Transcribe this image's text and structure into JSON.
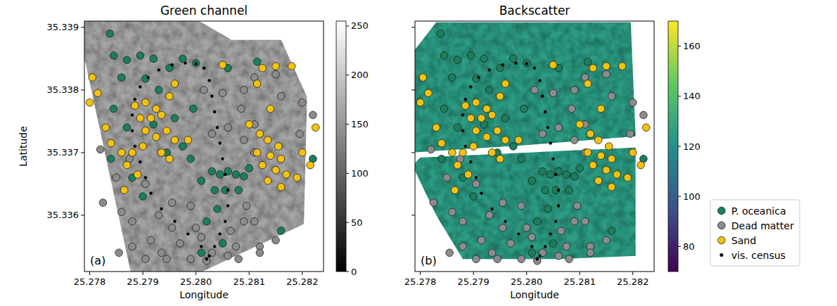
{
  "chart_data": [
    {
      "type": "scatter",
      "title": "Green channel",
      "x_label": "Longitude",
      "y_label": "Latitude",
      "annotation": "(a)",
      "xlim": [
        25.2779,
        25.2824
      ],
      "ylim": [
        35.3351,
        35.3391
      ],
      "xticks": [
        25.278,
        25.279,
        {
          "value": 25.28,
          "label": "25.280"
        },
        25.281,
        25.282
      ],
      "yticks": [
        35.336,
        35.337,
        35.338,
        35.339
      ],
      "colorbar": {
        "range": [
          0,
          255
        ],
        "ticks": [
          0,
          50,
          100,
          150,
          200,
          250
        ],
        "colors": [
          "#000000",
          "#ffffff"
        ]
      },
      "coverage": [
        {
          "x": [
            25.27788,
            25.28002,
            25.28067,
            25.2816,
            25.28209,
            25.28203,
            25.28012,
            25.27877,
            25.27788
          ],
          "y": [
            35.33912,
            35.33912,
            35.3388,
            35.3388,
            35.33789,
            35.33586,
            35.3351,
            35.3351,
            35.33859
          ],
          "value": 165
        }
      ],
      "series": [
        {
          "name": "P. oceanica",
          "color": "#1a7f5a",
          "marker": "circle",
          "x": [
            25.27838,
            25.27845,
            25.2787,
            25.27895,
            25.2792,
            25.2786,
            25.27905,
            25.2795,
            25.27975,
            25.28,
            25.2793,
            25.27845,
            25.2787,
            25.2792,
            25.2796,
            25.27995,
            25.2784,
            25.2788,
            25.279,
            25.27945,
            25.27975,
            25.2799,
            25.2801,
            25.2803,
            25.28045,
            25.2806,
            25.28075,
            25.2809,
            25.281,
            25.28035,
            25.28055,
            25.2808,
            25.2802,
            25.2804,
            25.2816,
            25.2805,
            25.2801,
            25.2822,
            25.28115,
            25.2806
          ],
          "values": [
            35.3389,
            35.33855,
            35.33848,
            35.33855,
            35.3385,
            35.3382,
            35.33818,
            35.33835,
            35.3385,
            35.33843,
            35.338,
            35.3377,
            35.3374,
            35.33745,
            35.33755,
            35.3377,
            35.3369,
            35.3366,
            35.3363,
            35.337,
            35.3371,
            35.3369,
            35.33655,
            35.3367,
            35.33665,
            35.3367,
            35.33665,
            35.33662,
            35.33675,
            35.3364,
            35.3364,
            35.3364,
            35.3359,
            35.3361,
            35.33575,
            35.33555,
            35.3354,
            35.3369,
            35.33845,
            35.33835
          ]
        },
        {
          "name": "Dead matter",
          "color": "#8c8c8c",
          "marker": "circle",
          "x": [
            25.28015,
            25.2805,
            25.2809,
            25.2811,
            25.2815,
            25.28085,
            25.2811,
            25.2809,
            25.2816,
            25.282,
            25.2822,
            25.28195,
            25.2811,
            25.2803,
            25.2806,
            25.27875,
            25.2782,
            25.2785,
            25.27825,
            25.2786,
            25.27905,
            25.2788,
            25.2793,
            25.27955,
            25.2799,
            25.28,
            25.27955,
            25.27915,
            25.2788,
            25.27935,
            25.2797,
            25.2801,
            25.2803,
            25.28065,
            25.2809,
            25.28095,
            25.2811,
            25.28075,
            25.2806,
            25.2812,
            25.2815,
            25.2799,
            25.27945,
            25.27905,
            25.2802,
            25.2808,
            25.2812,
            25.27855
          ],
          "values": [
            35.338,
            35.33795,
            35.338,
            35.3382,
            35.33825,
            35.3377,
            35.33745,
            35.3372,
            35.3379,
            35.3378,
            35.3376,
            35.3373,
            35.337,
            35.3373,
            35.3374,
            35.3369,
            35.33705,
            35.3366,
            35.3362,
            35.33605,
            35.3365,
            35.3359,
            35.336,
            35.3362,
            35.33615,
            35.3358,
            35.3358,
            35.3356,
            35.3355,
            35.3354,
            35.33555,
            35.33565,
            35.3354,
            35.33575,
            35.3359,
            35.33615,
            35.3359,
            35.3355,
            35.33535,
            35.3355,
            35.3356,
            35.3353,
            35.3353,
            35.3353,
            35.33527,
            35.3353,
            35.3354,
            35.3354
          ]
        },
        {
          "name": "Sand",
          "color": "#f4c20d",
          "marker": "circle",
          "x": [
            25.27805,
            25.27815,
            25.278,
            25.2784,
            25.2786,
            25.2783,
            25.27885,
            25.27905,
            25.27925,
            25.27895,
            25.27915,
            25.27935,
            25.27905,
            25.27925,
            25.27945,
            25.2796,
            25.279,
            25.2788,
            25.27935,
            25.2795,
            25.2787,
            25.2789,
            25.27865,
            25.27985,
            25.2796,
            25.28125,
            25.2815,
            25.2818,
            25.28115,
            25.2814,
            25.281,
            25.2812,
            25.28135,
            25.28155,
            25.28115,
            25.2814,
            25.2816,
            25.28125,
            25.2815,
            25.2817,
            25.28135,
            25.2816,
            25.282,
            25.28215,
            25.28225,
            25.2819,
            25.2805,
            25.2795
          ],
          "values": [
            35.3382,
            35.33795,
            35.3378,
            35.33715,
            35.337,
            35.3374,
            35.33775,
            35.3378,
            35.3377,
            35.33755,
            35.33755,
            35.3376,
            35.33735,
            35.33725,
            35.33735,
            35.3372,
            35.3371,
            35.337,
            35.337,
            35.3369,
            35.3368,
            35.33665,
            35.3364,
            35.3372,
            35.3381,
            35.33835,
            35.33838,
            35.33838,
            35.3381,
            35.3377,
            35.33745,
            35.3373,
            35.3372,
            35.3371,
            35.337,
            35.33695,
            35.3369,
            35.3368,
            35.33672,
            35.33665,
            35.33655,
            35.33645,
            35.337,
            35.3368,
            35.3374,
            35.3366,
            35.3384,
            35.3379
          ]
        },
        {
          "name": "vis. census",
          "color": "#000000",
          "marker": "dot",
          "x": [
            25.2802,
            25.2801,
            25.27985,
            25.2796,
            25.27935,
            25.27915,
            25.27905,
            25.27895,
            25.27885,
            25.2788,
            25.2788,
            25.27885,
            25.27895,
            25.2791,
            25.2793,
            25.27955,
            25.2798,
            25.28,
            25.28015,
            25.28025,
            25.2803,
            25.28035,
            25.2804,
            25.28045,
            25.2805,
            25.28055,
            25.2806,
            25.2806,
            25.28055,
            25.28045,
            25.28035,
            25.28025
          ],
          "values": [
            35.3353,
            35.3355,
            35.3357,
            35.3359,
            35.3361,
            35.33635,
            35.3366,
            35.33685,
            35.3371,
            35.33735,
            35.3376,
            35.33785,
            35.33805,
            35.3382,
            35.33832,
            35.3384,
            35.33843,
            35.33842,
            35.33835,
            35.33815,
            35.3379,
            35.33765,
            35.3374,
            35.33715,
            35.3369,
            35.33665,
            35.3364,
            35.33615,
            35.3359,
            35.3357,
            35.3355,
            35.33535
          ]
        }
      ]
    },
    {
      "type": "scatter",
      "title": "Backscatter",
      "x_label": "Longitude",
      "annotation": "(b)",
      "tick_labels": "x",
      "legend": "right",
      "xlim": [
        25.2779,
        25.2824
      ],
      "ylim": [
        35.3351,
        35.3391
      ],
      "xticks": [
        25.278,
        25.279,
        {
          "value": 25.28,
          "label": "25.280"
        },
        25.281,
        25.282
      ],
      "yticks": [
        35.336,
        35.337,
        35.338,
        35.339
      ],
      "colorbar": {
        "range": [
          70,
          170
        ],
        "ticks": [
          80,
          100,
          120,
          140,
          160
        ],
        "colors": [
          "#440154",
          "#3b528b",
          "#21918c",
          "#5ec962",
          "#fde725"
        ]
      },
      "coverage": [
        {
          "x": [
            25.27782,
            25.2783,
            25.28196,
            25.28205,
            25.28,
            25.27782
          ],
          "y": [
            35.33856,
            35.33908,
            35.33908,
            35.33726,
            35.33712,
            35.337
          ],
          "value": 125
        },
        {
          "x": [
            25.278,
            25.28205,
            25.28205,
            25.2806,
            25.2788,
            25.2783,
            25.27785
          ],
          "y": [
            35.33692,
            35.33708,
            35.33535,
            35.3353,
            35.3353,
            35.336,
            35.3368
          ],
          "value": 125
        }
      ],
      "series": [
        {
          "name": "P. oceanica",
          "color": "#1a7f5a",
          "marker": "circle",
          "x": [
            25.27838,
            25.27845,
            25.2787,
            25.27895,
            25.2792,
            25.2786,
            25.27905,
            25.2795,
            25.27975,
            25.28,
            25.2793,
            25.27845,
            25.2787,
            25.2792,
            25.2796,
            25.27995,
            25.2784,
            25.2788,
            25.279,
            25.27945,
            25.27975,
            25.2799,
            25.2801,
            25.2803,
            25.28045,
            25.2806,
            25.28075,
            25.2809,
            25.281,
            25.28035,
            25.28055,
            25.2808,
            25.2802,
            25.2804,
            25.2816,
            25.2805,
            25.2801,
            25.2822,
            25.28115,
            25.2806
          ],
          "values": [
            35.3389,
            35.33855,
            35.33848,
            35.33855,
            35.3385,
            35.3382,
            35.33818,
            35.33835,
            35.3385,
            35.33843,
            35.338,
            35.3377,
            35.3374,
            35.33745,
            35.33755,
            35.3377,
            35.3369,
            35.3366,
            35.3363,
            35.337,
            35.3371,
            35.3369,
            35.33655,
            35.3367,
            35.33665,
            35.3367,
            35.33665,
            35.33662,
            35.33675,
            35.3364,
            35.3364,
            35.3364,
            35.3359,
            35.3361,
            35.33575,
            35.33555,
            35.3354,
            35.3369,
            35.33845,
            35.33835
          ]
        },
        {
          "name": "Dead matter",
          "color": "#8c8c8c",
          "marker": "circle",
          "x": [
            25.28015,
            25.2805,
            25.2809,
            25.2811,
            25.2815,
            25.28085,
            25.2811,
            25.2809,
            25.2816,
            25.282,
            25.2822,
            25.28195,
            25.2811,
            25.2803,
            25.2806,
            25.27875,
            25.2782,
            25.2785,
            25.27825,
            25.2786,
            25.27905,
            25.2788,
            25.2793,
            25.27955,
            25.2799,
            25.28,
            25.27955,
            25.27915,
            25.2788,
            25.27935,
            25.2797,
            25.2801,
            25.2803,
            25.28065,
            25.2809,
            25.28095,
            25.2811,
            25.28075,
            25.2806,
            25.2812,
            25.2815,
            25.2799,
            25.27945,
            25.27905,
            25.2802,
            25.2808,
            25.2812,
            25.27855
          ],
          "values": [
            35.338,
            35.33795,
            35.338,
            35.3382,
            35.33825,
            35.3377,
            35.33745,
            35.3372,
            35.3379,
            35.3378,
            35.3376,
            35.3373,
            35.337,
            35.3373,
            35.3374,
            35.3369,
            35.33705,
            35.3366,
            35.3362,
            35.33605,
            35.3365,
            35.3359,
            35.336,
            35.3362,
            35.33615,
            35.3358,
            35.3358,
            35.3356,
            35.3355,
            35.3354,
            35.33555,
            35.33565,
            35.3354,
            35.33575,
            35.3359,
            35.33615,
            35.3359,
            35.3355,
            35.33535,
            35.3355,
            35.3356,
            35.3353,
            35.3353,
            35.3353,
            35.33527,
            35.3353,
            35.3354,
            35.3354
          ]
        },
        {
          "name": "Sand",
          "color": "#f4c20d",
          "marker": "circle",
          "x": [
            25.27805,
            25.27815,
            25.278,
            25.2784,
            25.2786,
            25.2783,
            25.27885,
            25.27905,
            25.27925,
            25.27895,
            25.27915,
            25.27935,
            25.27905,
            25.27925,
            25.27945,
            25.2796,
            25.279,
            25.2788,
            25.27935,
            25.2795,
            25.2787,
            25.2789,
            25.27865,
            25.27985,
            25.2796,
            25.28125,
            25.2815,
            25.2818,
            25.28115,
            25.2814,
            25.281,
            25.2812,
            25.28135,
            25.28155,
            25.28115,
            25.2814,
            25.2816,
            25.28125,
            25.2815,
            25.2817,
            25.28135,
            25.2816,
            25.282,
            25.28215,
            25.28225,
            25.2819,
            25.2805,
            25.2795
          ],
          "values": [
            35.3382,
            35.33795,
            35.3378,
            35.33715,
            35.337,
            35.3374,
            35.33775,
            35.3378,
            35.3377,
            35.33755,
            35.33755,
            35.3376,
            35.33735,
            35.33725,
            35.33735,
            35.3372,
            35.3371,
            35.337,
            35.337,
            35.3369,
            35.3368,
            35.33665,
            35.3364,
            35.3372,
            35.3381,
            35.33835,
            35.33838,
            35.33838,
            35.3381,
            35.3377,
            35.33745,
            35.3373,
            35.3372,
            35.3371,
            35.337,
            35.33695,
            35.3369,
            35.3368,
            35.33672,
            35.33665,
            35.33655,
            35.33645,
            35.337,
            35.3368,
            35.3374,
            35.3366,
            35.3384,
            35.3379
          ]
        },
        {
          "name": "vis. census",
          "color": "#000000",
          "marker": "dot",
          "x": [
            25.2802,
            25.2801,
            25.27985,
            25.2796,
            25.27935,
            25.27915,
            25.27905,
            25.27895,
            25.27885,
            25.2788,
            25.2788,
            25.27885,
            25.27895,
            25.2791,
            25.2793,
            25.27955,
            25.2798,
            25.28,
            25.28015,
            25.28025,
            25.2803,
            25.28035,
            25.2804,
            25.28045,
            25.2805,
            25.28055,
            25.2806,
            25.2806,
            25.28055,
            25.28045,
            25.28035,
            25.28025
          ],
          "values": [
            35.3353,
            35.3355,
            35.3357,
            35.3359,
            35.3361,
            35.33635,
            35.3366,
            35.33685,
            35.3371,
            35.33735,
            35.3376,
            35.33785,
            35.33805,
            35.3382,
            35.33832,
            35.3384,
            35.33843,
            35.33842,
            35.33835,
            35.33815,
            35.3379,
            35.33765,
            35.3374,
            35.33715,
            35.3369,
            35.33665,
            35.3364,
            35.33615,
            35.3359,
            35.3357,
            35.3355,
            35.33535
          ]
        }
      ]
    }
  ]
}
